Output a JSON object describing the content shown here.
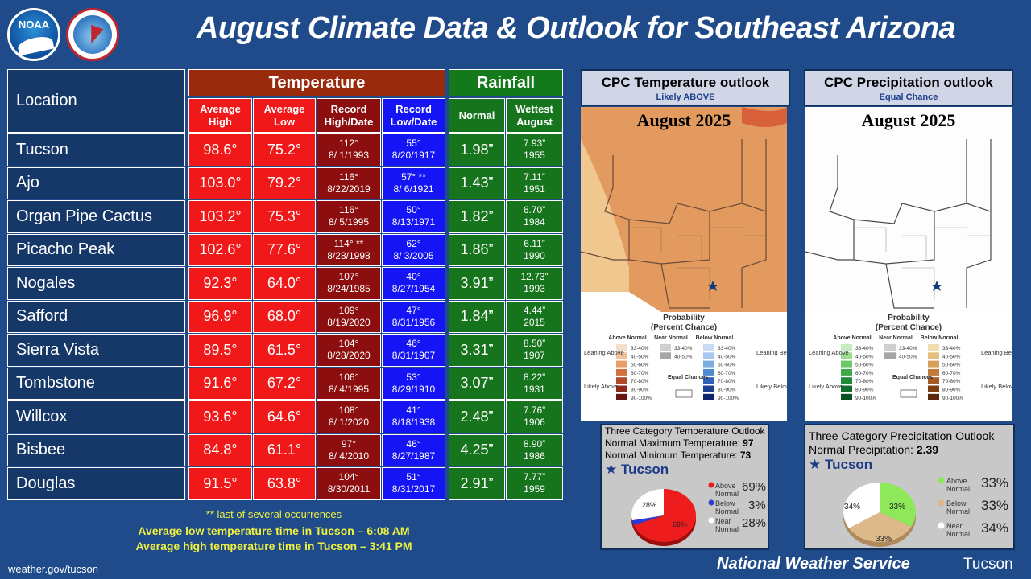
{
  "header": {
    "title": "August Climate Data & Outlook for Southeast Arizona",
    "noaa_logo_text": "NOAA",
    "nws_logo_text": "NATIONAL WEATHER SERVICE"
  },
  "table": {
    "location_header": "Location",
    "temp_header": "Temperature",
    "rain_header": "Rainfall",
    "sub_headers": {
      "avg_high": "Average High",
      "avg_low": "Average Low",
      "rec_high": "Record High/Date",
      "rec_low": "Record Low/Date",
      "normal": "Normal",
      "wettest": "Wettest August"
    },
    "rows": [
      {
        "loc": "Tucson",
        "high": "98.6°",
        "low": "75.2°",
        "rh1": "112°",
        "rh2": "8/ 1/1993",
        "rl1": "55°",
        "rl2": "8/20/1917",
        "norm": "1.98”",
        "w1": "7.93”",
        "w2": "1955"
      },
      {
        "loc": "Ajo",
        "high": "103.0°",
        "low": "79.2°",
        "rh1": "116°",
        "rh2": "8/22/2019",
        "rl1": "57° **",
        "rl2": "8/ 6/1921",
        "norm": "1.43”",
        "w1": "7.11”",
        "w2": "1951"
      },
      {
        "loc": "Organ Pipe Cactus",
        "high": "103.2°",
        "low": "75.3°",
        "rh1": "116°",
        "rh2": "8/ 5/1995",
        "rl1": "50°",
        "rl2": "8/13/1971",
        "norm": "1.82”",
        "w1": "6.70”",
        "w2": "1984"
      },
      {
        "loc": "Picacho Peak",
        "high": "102.6°",
        "low": "77.6°",
        "rh1": "114° **",
        "rh2": "8/28/1998",
        "rl1": "62°",
        "rl2": "8/ 3/2005",
        "norm": "1.86”",
        "w1": "6.11”",
        "w2": "1990"
      },
      {
        "loc": "Nogales",
        "high": "92.3°",
        "low": "64.0°",
        "rh1": "107°",
        "rh2": "8/24/1985",
        "rl1": "40°",
        "rl2": "8/27/1954",
        "norm": "3.91”",
        "w1": "12.73”",
        "w2": "1993"
      },
      {
        "loc": "Safford",
        "high": "96.9°",
        "low": "68.0°",
        "rh1": "109°",
        "rh2": "8/19/2020",
        "rl1": "47°",
        "rl2": "8/31/1956",
        "norm": "1.84”",
        "w1": "4.44”",
        "w2": "2015"
      },
      {
        "loc": "Sierra Vista",
        "high": "89.5°",
        "low": "61.5°",
        "rh1": "104°",
        "rh2": "8/28/2020",
        "rl1": "46°",
        "rl2": "8/31/1907",
        "norm": "3.31”",
        "w1": "8.50”",
        "w2": "1907"
      },
      {
        "loc": "Tombstone",
        "high": "91.6°",
        "low": "67.2°",
        "rh1": "106°",
        "rh2": "8/ 4/1995",
        "rl1": "53°",
        "rl2": "8/29/1910",
        "norm": "3.07”",
        "w1": "8.22”",
        "w2": "1931"
      },
      {
        "loc": "Willcox",
        "high": "93.6°",
        "low": "64.6°",
        "rh1": "108°",
        "rh2": "8/ 1/2020",
        "rl1": "41°",
        "rl2": "8/18/1938",
        "norm": "2.48”",
        "w1": "7.76”",
        "w2": "1906"
      },
      {
        "loc": "Bisbee",
        "high": "84.8°",
        "low": "61.1°",
        "rh1": "97°",
        "rh2": "8/ 4/2010",
        "rl1": "46°",
        "rl2": "8/27/1987",
        "norm": "4.25”",
        "w1": "8.90”",
        "w2": "1986"
      },
      {
        "loc": "Douglas",
        "high": "91.5°",
        "low": "63.8°",
        "rh1": "104°",
        "rh2": "8/30/2011",
        "rl1": "51°",
        "rl2": "8/31/2017",
        "norm": "2.91”",
        "w1": "7.77”",
        "w2": "1959"
      }
    ]
  },
  "notes": {
    "occurrences": "** last of several occurrences",
    "low_time": "Average low temperature time in Tucson – 6:08 AM",
    "high_time": "Average high temperature time in Tucson – 3:41 PM"
  },
  "footer": {
    "url": "weather.gov/tucson",
    "nws": "National Weather Service",
    "office": "Tucson"
  },
  "temp_outlook": {
    "title": "CPC Temperature outlook",
    "subtitle": "Likely ABOVE",
    "map_title": "August 2025",
    "box_title": "Three Category Temperature Outlook",
    "normal_max_label": "Normal Maximum Temperature:",
    "normal_max": "97",
    "normal_min_label": "Normal Minimum Temperature:",
    "normal_min": "73",
    "city": "Tucson",
    "above_label": "Above Normal",
    "below_label": "Below Normal",
    "near_label": "Near Normal",
    "above": "69%",
    "below": "3%",
    "near": "28%",
    "slice_above": "69%",
    "slice_near": "28%",
    "colors": {
      "above": "#ee1c1c",
      "below": "#2a3cd8",
      "near": "#ffffff",
      "map": "#e29a5e"
    }
  },
  "precip_outlook": {
    "title": "CPC Precipitation outlook",
    "subtitle": "Equal Chance",
    "map_title": "August 2025",
    "box_title": "Three Category Precipitation Outlook",
    "normal_label": "Normal Precipitation:",
    "normal": "2.39",
    "city": "Tucson",
    "above_label": "Above Normal",
    "below_label": "Below Normal",
    "near_label": "Near Normal",
    "above": "33%",
    "below": "33%",
    "near": "34%",
    "slice_above": "33%",
    "slice_below": "33%",
    "slice_near": "34%",
    "colors": {
      "above": "#8ee85a",
      "below": "#dcb88a",
      "near": "#ffffff"
    }
  },
  "legend": {
    "heading1": "Probability",
    "heading2": "(Percent Chance)",
    "above_col": "Above Normal",
    "near_col": "Near Normal",
    "below_col": "Below Normal",
    "leaning_above": "Leaning Above",
    "likely_above": "Likely Above",
    "leaning_below": "Leaning Below",
    "likely_below": "Likely Below",
    "equal": "Equal Chances",
    "bins": [
      "33-40%",
      "40-50%",
      "50-60%",
      "60-70%",
      "70-80%",
      "80-90%",
      "90-100%"
    ],
    "near_bins": [
      "33-40%",
      "40-50%"
    ]
  }
}
